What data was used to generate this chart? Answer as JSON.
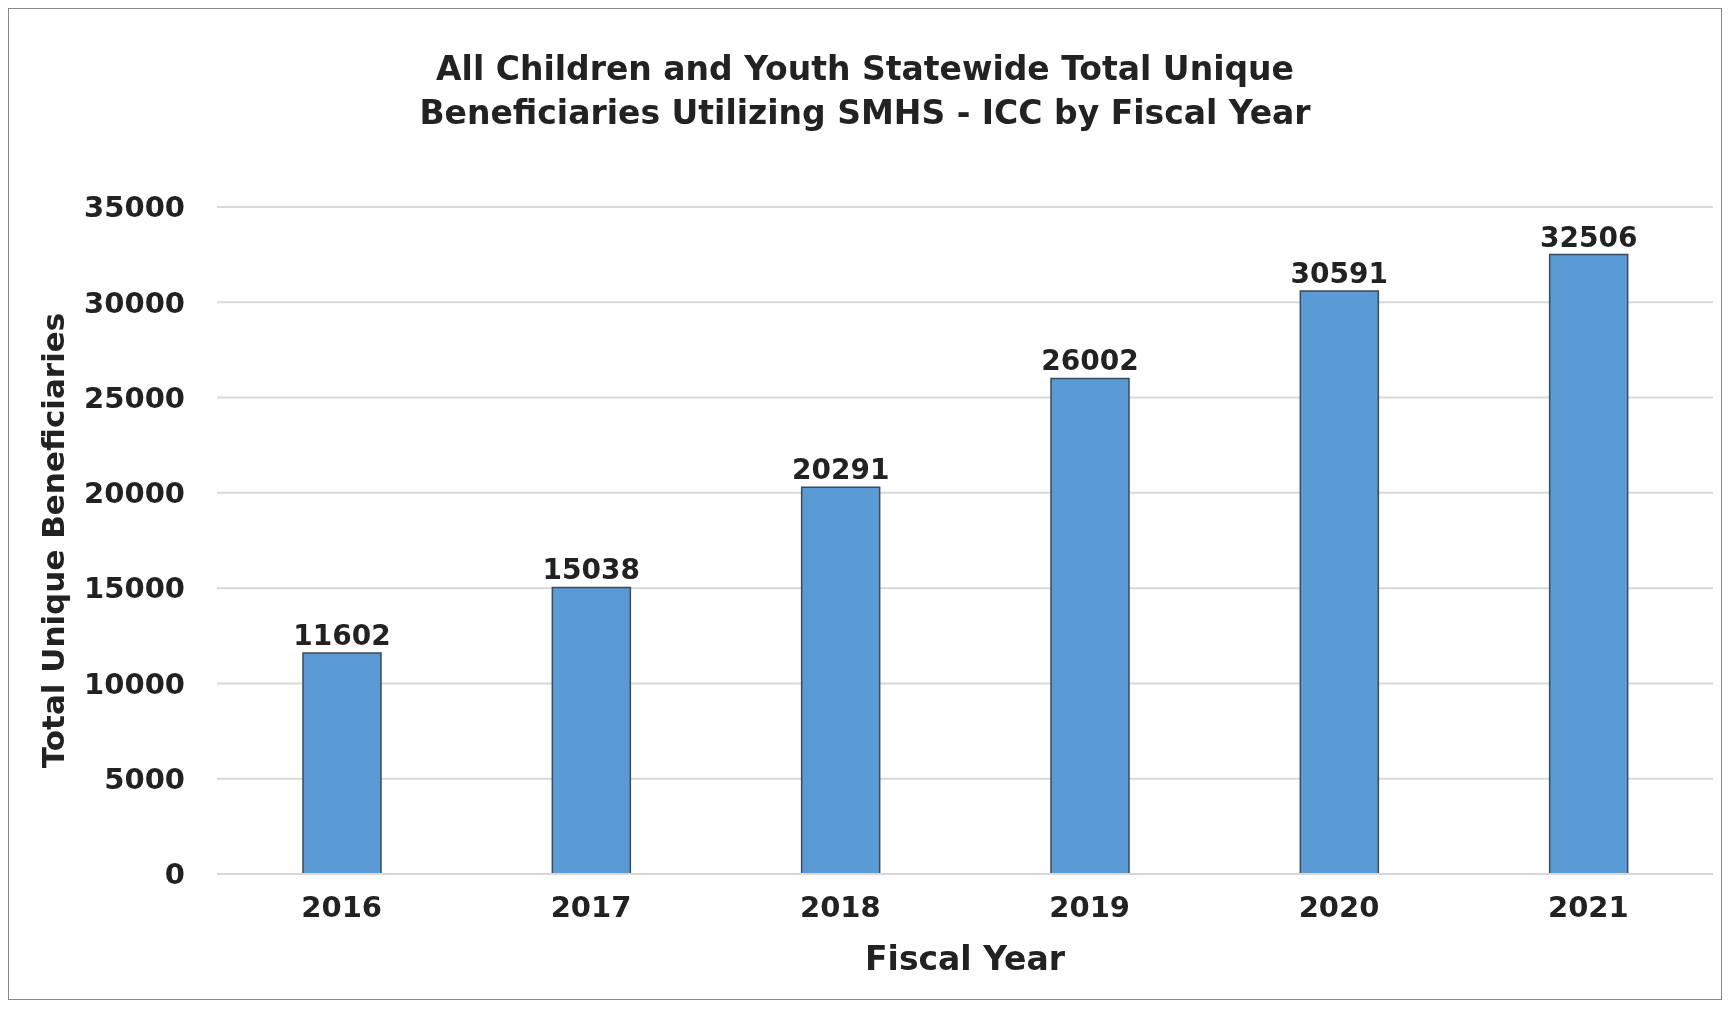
{
  "chart_data": {
    "type": "bar",
    "title": "All Children and Youth Statewide Total Unique Beneficiaries Utilizing SMHS - ICC by Fiscal Year",
    "xlabel": "Fiscal Year",
    "ylabel": "Total Unique Beneficiaries",
    "categories": [
      "2016",
      "2017",
      "2018",
      "2019",
      "2020",
      "2021"
    ],
    "values": [
      11602,
      15038,
      20291,
      26002,
      30591,
      32506
    ],
    "color": "#5b9bd5",
    "ylim": [
      0,
      35000
    ],
    "yticks": [
      0,
      5000,
      10000,
      15000,
      20000,
      25000,
      30000,
      35000
    ],
    "grid": "y",
    "data_labels": true,
    "legend": false
  }
}
